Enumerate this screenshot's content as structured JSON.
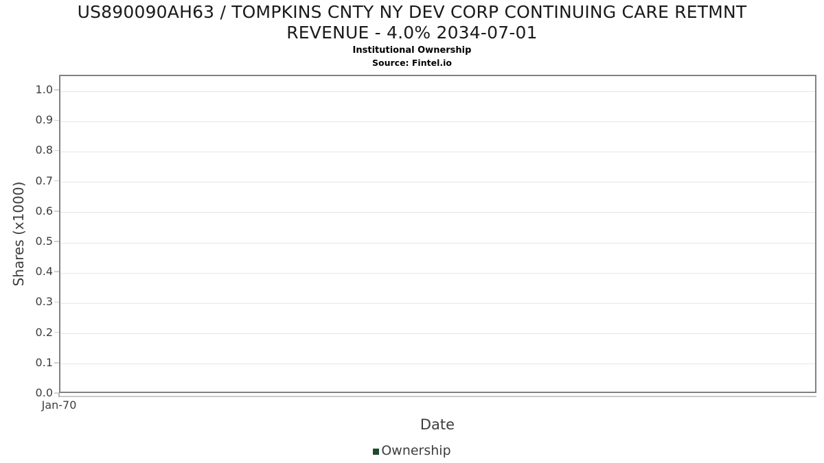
{
  "chart_data": {
    "type": "line",
    "title": "US890090AH63 / TOMPKINS CNTY NY DEV CORP CONTINUING CARE RETMNT REVENUE - 4.0% 2034-07-01",
    "title_lines": [
      "US890090AH63 / TOMPKINS CNTY NY DEV CORP CONTINUING CARE RETMNT",
      "REVENUE - 4.0% 2034-07-01"
    ],
    "subtitle": "Institutional Ownership",
    "source": "Source: Fintel.io",
    "xlabel": "Date",
    "ylabel": "Shares (x1000)",
    "x_ticks": [
      "Jan-70"
    ],
    "y_ticks": [
      0.0,
      0.1,
      0.2,
      0.3,
      0.4,
      0.5,
      0.6,
      0.7,
      0.8,
      0.9,
      1.0
    ],
    "ylim": [
      0,
      1.05
    ],
    "grid": true,
    "legend_position": "bottom",
    "series": [
      {
        "name": "Ownership",
        "color": "#1d4a2d",
        "x": [],
        "values": []
      }
    ],
    "colors": {
      "grid": "#e6e6e6",
      "plot_border": "#808080",
      "axis_line": "#c9c9c9",
      "tick_text": "#3d3d3d",
      "title_text": "#1a1a1a",
      "series_green": "#1d4a2d"
    }
  }
}
